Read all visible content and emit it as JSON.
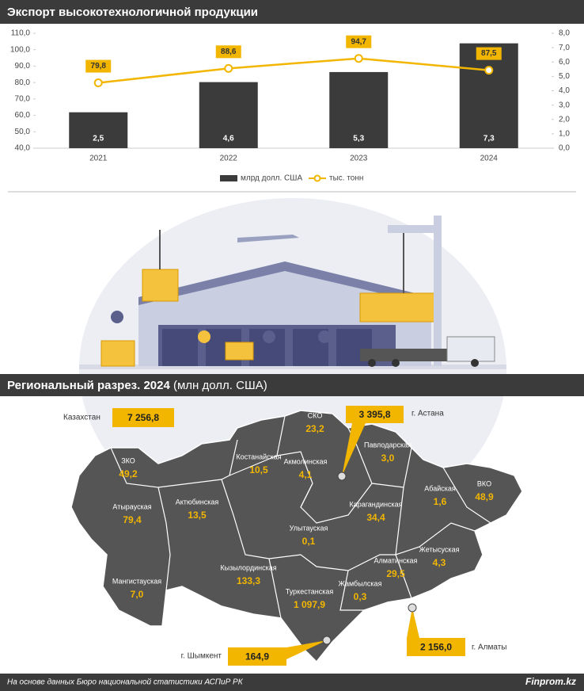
{
  "chart_data": {
    "type": "bar",
    "title": "Экспорт высокотехнологичной продукции",
    "categories": [
      "2021",
      "2022",
      "2023",
      "2024"
    ],
    "series": [
      {
        "name": "млрд долл. США",
        "type": "bar",
        "axis": "y2",
        "color": "#3b3b3b",
        "values": [
          2.5,
          4.6,
          5.3,
          7.3
        ],
        "value_labels": [
          "2,5",
          "4,6",
          "5,3",
          "7,3"
        ]
      },
      {
        "name": "тыс. тонн",
        "type": "line",
        "color": "#f2b600",
        "values": [
          79.8,
          88.6,
          94.7,
          87.5
        ],
        "value_labels": [
          "79,8",
          "88,6",
          "94,7",
          "87,5"
        ]
      }
    ],
    "ylim": [
      40,
      110
    ],
    "yticks": [
      {
        "value": 40,
        "label": "40,0"
      },
      {
        "value": 50,
        "label": "50,0"
      },
      {
        "value": 60,
        "label": "60,0"
      },
      {
        "value": 70,
        "label": "70,0"
      },
      {
        "value": 80,
        "label": "80,0"
      },
      {
        "value": 90,
        "label": "90,0"
      },
      {
        "value": 100,
        "label": "100,0"
      },
      {
        "value": 110,
        "label": "110,0"
      }
    ],
    "y2lim": [
      0,
      8
    ],
    "y2ticks": [
      {
        "value": 0,
        "label": "0,0"
      },
      {
        "value": 1,
        "label": "1,0"
      },
      {
        "value": 2,
        "label": "2,0"
      },
      {
        "value": 3,
        "label": "3,0"
      },
      {
        "value": 4,
        "label": "4,0"
      },
      {
        "value": 5,
        "label": "5,0"
      },
      {
        "value": 6,
        "label": "6,0"
      },
      {
        "value": 7,
        "label": "7,0"
      },
      {
        "value": 8,
        "label": "8,0"
      }
    ]
  },
  "region_header": {
    "title": "Региональный разрез. 2024",
    "unit": "(млн долл. США)"
  },
  "map": {
    "regions": [
      {
        "name": "СКО",
        "value": "23,2"
      },
      {
        "name": "Павлодарская",
        "value": "3,0"
      },
      {
        "name": "Костанайская",
        "value": "10,5"
      },
      {
        "name": "Акмолинская",
        "value": "4,1"
      },
      {
        "name": "ЗКО",
        "value": "49,2"
      },
      {
        "name": "ВКО",
        "value": "48,9"
      },
      {
        "name": "Абайская",
        "value": "1,6"
      },
      {
        "name": "Актюбинская",
        "value": "13,5"
      },
      {
        "name": "Атырауская",
        "value": "79,4"
      },
      {
        "name": "Карагандинская",
        "value": "34,4"
      },
      {
        "name": "Улытауская",
        "value": "0,1"
      },
      {
        "name": "Жетысуская",
        "value": "4,3"
      },
      {
        "name": "Кызылординская",
        "value": "133,3"
      },
      {
        "name": "Алматинская",
        "value": "29,5"
      },
      {
        "name": "Мангистауская",
        "value": "7,0"
      },
      {
        "name": "Туркестанская",
        "value": "1 097,9"
      },
      {
        "name": "Жамбылская",
        "value": "0,3"
      }
    ],
    "callouts": [
      {
        "label": "Казахстан",
        "value": "7 256,8"
      },
      {
        "label": "г. Астана",
        "value": "3 395,8"
      },
      {
        "label": "г. Шымкент",
        "value": "164,9"
      },
      {
        "label": "г. Алматы",
        "value": "2 156,0"
      }
    ]
  },
  "footer": {
    "source": "На основе данных Бюро национальной статистики АСПиР РК",
    "brand": "Finprom.kz"
  }
}
